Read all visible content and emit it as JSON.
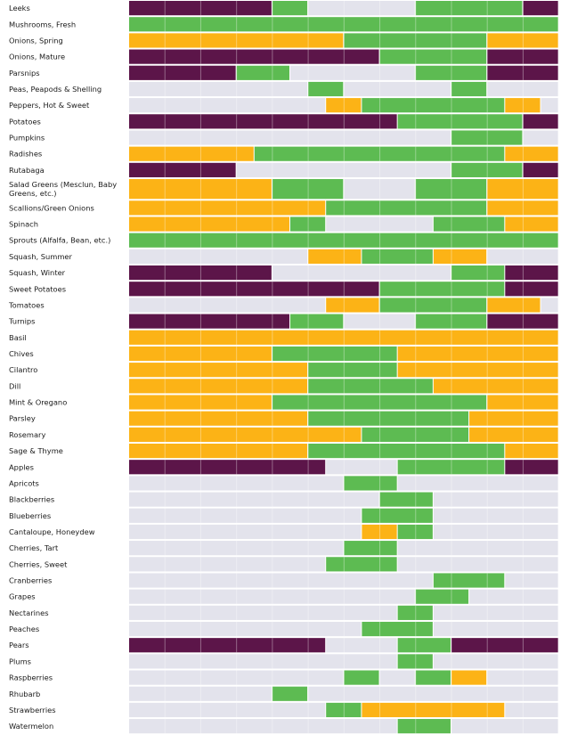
{
  "chart_data": {
    "type": "heatmap",
    "cells_per_row": 24,
    "colors": {
      "none": "#e3e3ec",
      "storage": "#5c1549",
      "indoor": "#fcb316",
      "local": "#5dbb52",
      "label_bg": "#ffffff",
      "grid": "#ffffff"
    },
    "rows": [
      {
        "label": "Leeks",
        "cells": "SSSSSSSSLLNNNNNNLLLLLLSS"
      },
      {
        "label": "Mushrooms, Fresh",
        "cells": "LLLLLLLLLLLLLLLLLLLLLLLL"
      },
      {
        "label": "Onions, Spring",
        "cells": "IIIIIIIIIIIILLLLLLLLIIII"
      },
      {
        "label": "Onions, Mature",
        "cells": "SSSSSSSSSSSSSSLLLLLLSSSS"
      },
      {
        "label": "Parsnips",
        "cells": "SSSSSSLLLNNNNNNNLLLLSSSS"
      },
      {
        "label": "Peas, Peapods & Shelling",
        "cells": "NNNNNNNNNNLLNNNNNNLLNNNN"
      },
      {
        "label": "Peppers, Hot & Sweet",
        "cells": "NNNNNNNNNNNIILLLLLLLLIIN"
      },
      {
        "label": "Potatoes",
        "cells": "SSSSSSSSSSSSSSSLLLLLLLSS"
      },
      {
        "label": "Pumpkins",
        "cells": "NNNNNNNNNNNNNNNNNNLLLLNN"
      },
      {
        "label": "Radishes",
        "cells": "IIIIIIILLLLLLLLLLLLLLIII"
      },
      {
        "label": "Rutabaga",
        "cells": "SSSSSSNNNNNNNNNNNNLLLLSS"
      },
      {
        "label": [
          "Salad Greens (Mesclun, Baby",
          "Greens, etc.)"
        ],
        "cells": "IIIIIIIILLLLNNNNLLLLIIII"
      },
      {
        "label": "Scallions/Green Onions",
        "cells": "IIIIIIIIIIILLLLLLLLLIIII"
      },
      {
        "label": "Spinach",
        "cells": "IIIIIIIIILLNNNNNNLLLLIII"
      },
      {
        "label": "Sprouts (Alfalfa, Bean, etc.)",
        "cells": "LLLLLLLLLLLLLLLLLLLLLLLL"
      },
      {
        "label": "Squash, Summer",
        "cells": "NNNNNNNNNNIIILLLLIIINNNN"
      },
      {
        "label": "Squash, Winter",
        "cells": "SSSSSSSSNNNNNNNNNNLLLSSS"
      },
      {
        "label": "Sweet Potatoes",
        "cells": "SSSSSSSSSSSSSSLLLLLLLSSS"
      },
      {
        "label": "Tomatoes",
        "cells": "NNNNNNNNNNNIIILLLLLLIIIN"
      },
      {
        "label": "Turnips",
        "cells": "SSSSSSSSSLLLNNNNLLLLSSSS"
      },
      {
        "label": "Basil",
        "cells": "IIIIIIIIIIIIIIIIIIIIIIII"
      },
      {
        "label": "Chives",
        "cells": "IIIIIIIILLLLLLLIIIIIIIII"
      },
      {
        "label": "Cilantro",
        "cells": "IIIIIIIIIILLLLLIIIIIIIII"
      },
      {
        "label": "Dill",
        "cells": "IIIIIIIIIILLLLLLLIIIIIII"
      },
      {
        "label": "Mint & Oregano",
        "cells": "IIIIIIIILLLLLLLLLLLLIIII"
      },
      {
        "label": "Parsley",
        "cells": "IIIIIIIIIILLLLLLLLLIIIII"
      },
      {
        "label": "Rosemary",
        "cells": "IIIIIIIIIIIIILLLLLLIIIII"
      },
      {
        "label": "Sage & Thyme",
        "cells": "IIIIIIIIIILLLLLLLLLLLIII"
      },
      {
        "label": "Apples",
        "cells": "SSSSSSSSSSSNNNNLLLLLLSSS"
      },
      {
        "label": "Apricots",
        "cells": "NNNNNNNNNNNNLLLNNNNNNNNN"
      },
      {
        "label": "Blackberries",
        "cells": "NNNNNNNNNNNNNNLLLNNNNNNN"
      },
      {
        "label": "Blueberries",
        "cells": "NNNNNNNNNNNNNLLLLNNNNNNN"
      },
      {
        "label": "Cantaloupe, Honeydew",
        "cells": "NNNNNNNNNNNNNIILLNNNNNNN"
      },
      {
        "label": "Cherries, Tart",
        "cells": "NNNNNNNNNNNNLLLNNNNNNNNN"
      },
      {
        "label": "Cherries, Sweet",
        "cells": "NNNNNNNNNNNLLLLNNNNNNNNN"
      },
      {
        "label": "Cranberries",
        "cells": "NNNNNNNNNNNNNNNNNLLLLNNN"
      },
      {
        "label": "Grapes",
        "cells": "NNNNNNNNNNNNNNNNLLLNNNNN"
      },
      {
        "label": "Nectarines",
        "cells": "NNNNNNNNNNNNNNNLLNNNNNNN"
      },
      {
        "label": "Peaches",
        "cells": "NNNNNNNNNNNNNLLLLNNNNNNN"
      },
      {
        "label": "Pears",
        "cells": "SSSSSSSSSSSNNNNLLLSSSSSS"
      },
      {
        "label": "Plums",
        "cells": "NNNNNNNNNNNNNNNLLNNNNNNN"
      },
      {
        "label": "Raspberries",
        "cells": "NNNNNNNNNNNNLLNNLLIINNNN"
      },
      {
        "label": "Rhubarb",
        "cells": "NNNNNNNNLLNNNNNNNNNNNNNN"
      },
      {
        "label": "Strawberries",
        "cells": "NNNNNNNNNNNLLIIIIIIIINNN"
      },
      {
        "label": "Watermelon",
        "cells": "NNNNNNNNNNNNNNNLLLNNNNNN"
      }
    ]
  }
}
